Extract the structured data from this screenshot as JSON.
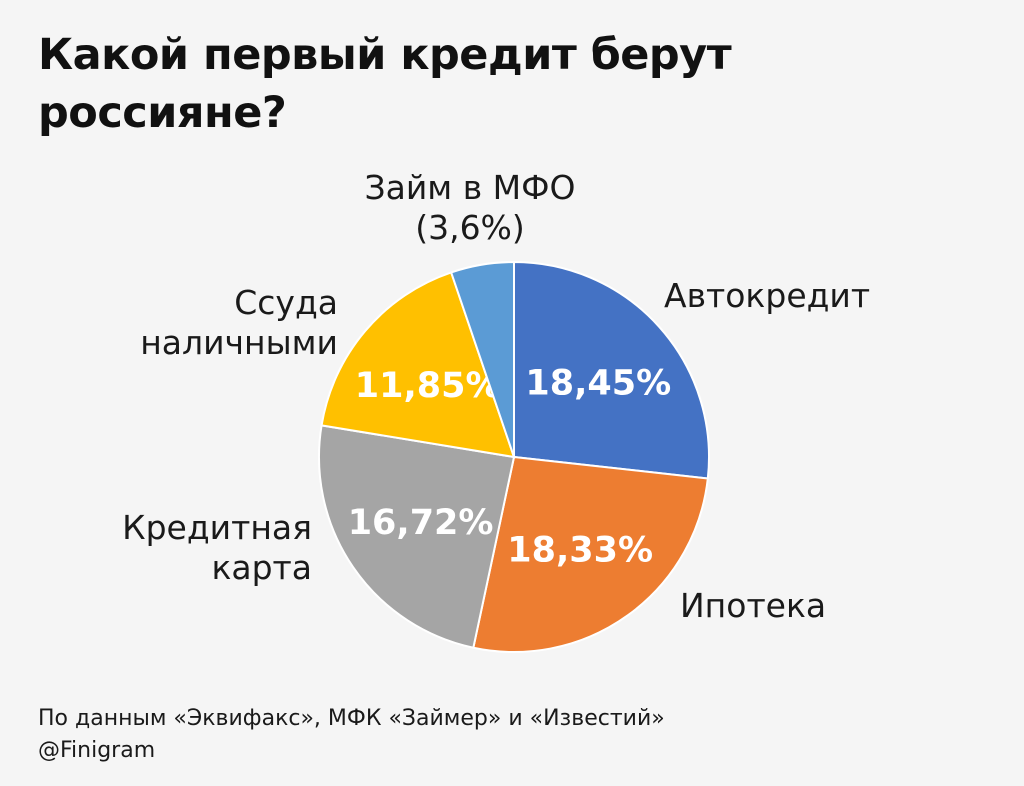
{
  "title": "Какой первый кредит берут россияне?",
  "footer": {
    "source": "По данным «Эквифакс», МФК «Займер» и «Известий»",
    "handle": "@Finigram"
  },
  "chart_data": {
    "type": "pie",
    "title": "Какой первый кредит берут россияне?",
    "slices": [
      {
        "label_lines": [
          "Автокредит"
        ],
        "value": 18.45,
        "value_label": "18,45%",
        "color": "#4472c4"
      },
      {
        "label_lines": [
          "Ипотека"
        ],
        "value": 18.33,
        "value_label": "18,33%",
        "color": "#ed7d31"
      },
      {
        "label_lines": [
          "Кредитная",
          "карта"
        ],
        "value": 16.72,
        "value_label": "16,72%",
        "color": "#a5a5a5"
      },
      {
        "label_lines": [
          "Ссуда",
          "наличными"
        ],
        "value": 11.85,
        "value_label": "11,85%",
        "color": "#ffc000"
      },
      {
        "label_lines": [
          "Займ в МФО",
          "(3,6%)"
        ],
        "value": 3.6,
        "value_label": "",
        "color": "#5b9bd5"
      }
    ]
  }
}
